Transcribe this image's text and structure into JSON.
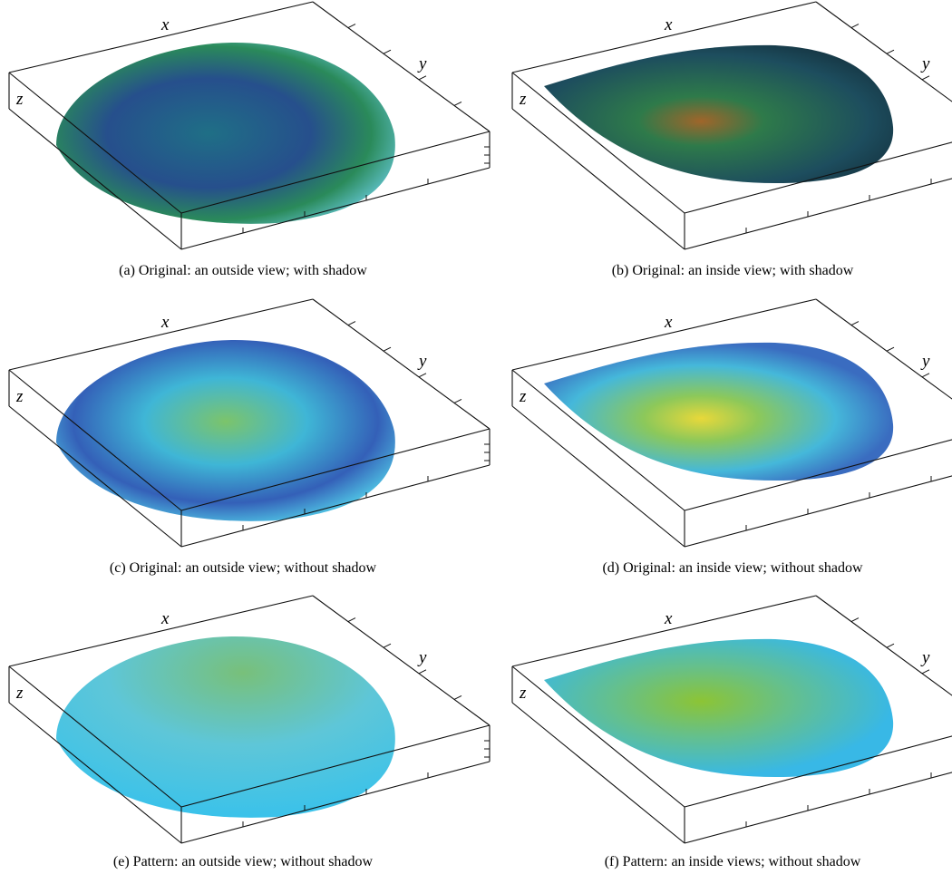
{
  "panels": [
    {
      "caption": "(a)  Original: an outside view; with shadow",
      "axes": {
        "x": "x",
        "y": "y",
        "z": "z"
      }
    },
    {
      "caption": "(b)  Original: an inside view; with shadow",
      "axes": {
        "x": "x",
        "y": "y",
        "z": "z"
      }
    },
    {
      "caption": "(c)  Original: an outside view; without shadow",
      "axes": {
        "x": "x",
        "y": "y",
        "z": "z"
      }
    },
    {
      "caption": "(d)  Original: an inside view; without shadow",
      "axes": {
        "x": "x",
        "y": "y",
        "z": "z"
      }
    },
    {
      "caption": "(e)  Pattern: an outside view; without shadow",
      "axes": {
        "x": "x",
        "y": "y",
        "z": "z"
      }
    },
    {
      "caption": "(f)  Pattern: an inside views; without shadow",
      "axes": {
        "x": "x",
        "y": "y",
        "z": "z"
      }
    }
  ]
}
